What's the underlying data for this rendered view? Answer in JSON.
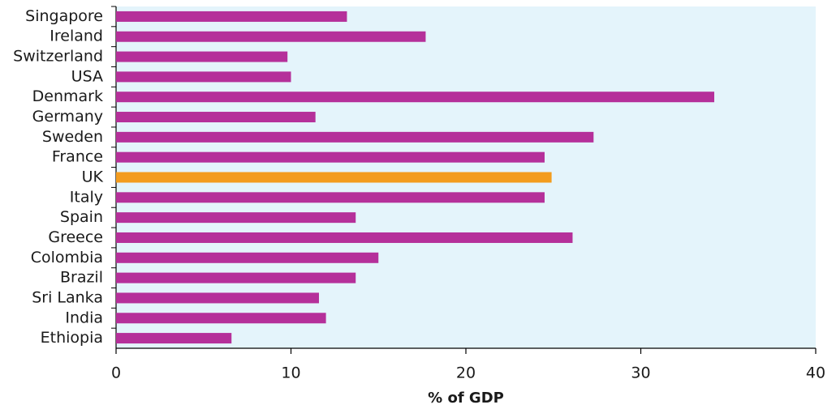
{
  "chart_data": {
    "type": "bar",
    "orientation": "horizontal",
    "x_label": "% of GDP",
    "categories": [
      "Singapore",
      "Ireland",
      "Switzerland",
      "USA",
      "Denmark",
      "Germany",
      "Sweden",
      "France",
      "UK",
      "Italy",
      "Spain",
      "Greece",
      "Colombia",
      "Brazil",
      "Sri Lanka",
      "India",
      "Ethiopia"
    ],
    "values": [
      13.2,
      17.7,
      9.8,
      10.0,
      34.2,
      11.4,
      27.3,
      24.5,
      24.9,
      24.5,
      13.7,
      26.1,
      15.0,
      13.7,
      11.6,
      12.0,
      6.6
    ],
    "colors": [
      "#b5309a",
      "#b5309a",
      "#b5309a",
      "#b5309a",
      "#b5309a",
      "#b5309a",
      "#b5309a",
      "#b5309a",
      "#f39c1e",
      "#b5309a",
      "#b5309a",
      "#b5309a",
      "#b5309a",
      "#b5309a",
      "#b5309a",
      "#b5309a",
      "#b5309a"
    ],
    "xlim": [
      0,
      40
    ],
    "xticks": [
      0,
      10,
      20,
      30,
      40
    ],
    "background": "#e4f4fb"
  }
}
